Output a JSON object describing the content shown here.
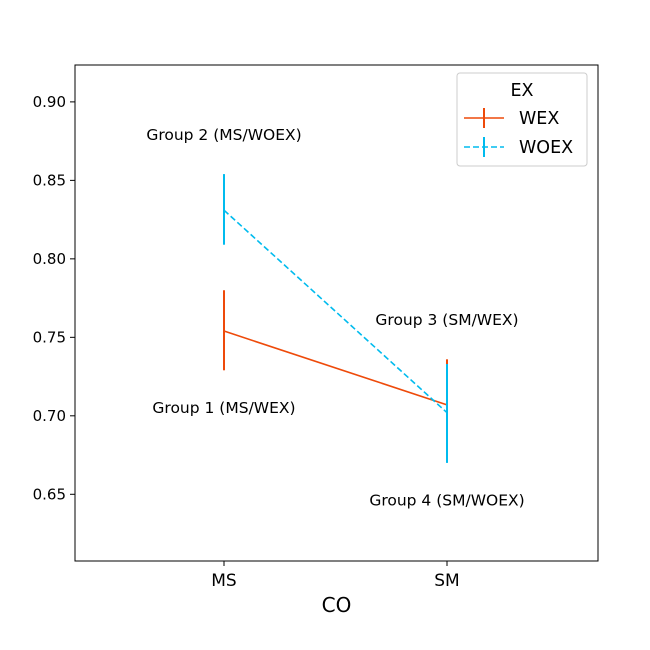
{
  "chart_data": {
    "type": "line",
    "xlabel": "CO",
    "ylabel": "",
    "categories": [
      "MS",
      "SM"
    ],
    "ylim": [
      0.6075,
      0.9235
    ],
    "yticks": [
      0.65,
      0.7,
      0.75,
      0.8,
      0.85,
      0.9
    ],
    "ytick_labels": [
      "0.65",
      "0.70",
      "0.75",
      "0.80",
      "0.85",
      "0.90"
    ],
    "legend": {
      "title": "EX",
      "placement": "top-right"
    },
    "series": [
      {
        "name": "WEX",
        "color": "#ee4a0a",
        "linestyle": "solid",
        "values": [
          0.754,
          0.707
        ],
        "err_low": [
          0.729,
          0.678
        ],
        "err_high": [
          0.78,
          0.736
        ]
      },
      {
        "name": "WOEX",
        "color": "#00bbee",
        "linestyle": "dashed",
        "values": [
          0.831,
          0.702
        ],
        "err_low": [
          0.809,
          0.67
        ],
        "err_high": [
          0.854,
          0.733
        ]
      }
    ],
    "annotations": [
      {
        "text": "Group 1 (MS/WEX)",
        "x": "MS",
        "y": 0.705
      },
      {
        "text": "Group 2 (MS/WOEX)",
        "x": "MS",
        "y": 0.879
      },
      {
        "text": "Group 3 (SM/WEX)",
        "x": "SM",
        "y": 0.761
      },
      {
        "text": "Group 4 (SM/WOEX)",
        "x": "SM",
        "y": 0.646
      }
    ]
  }
}
